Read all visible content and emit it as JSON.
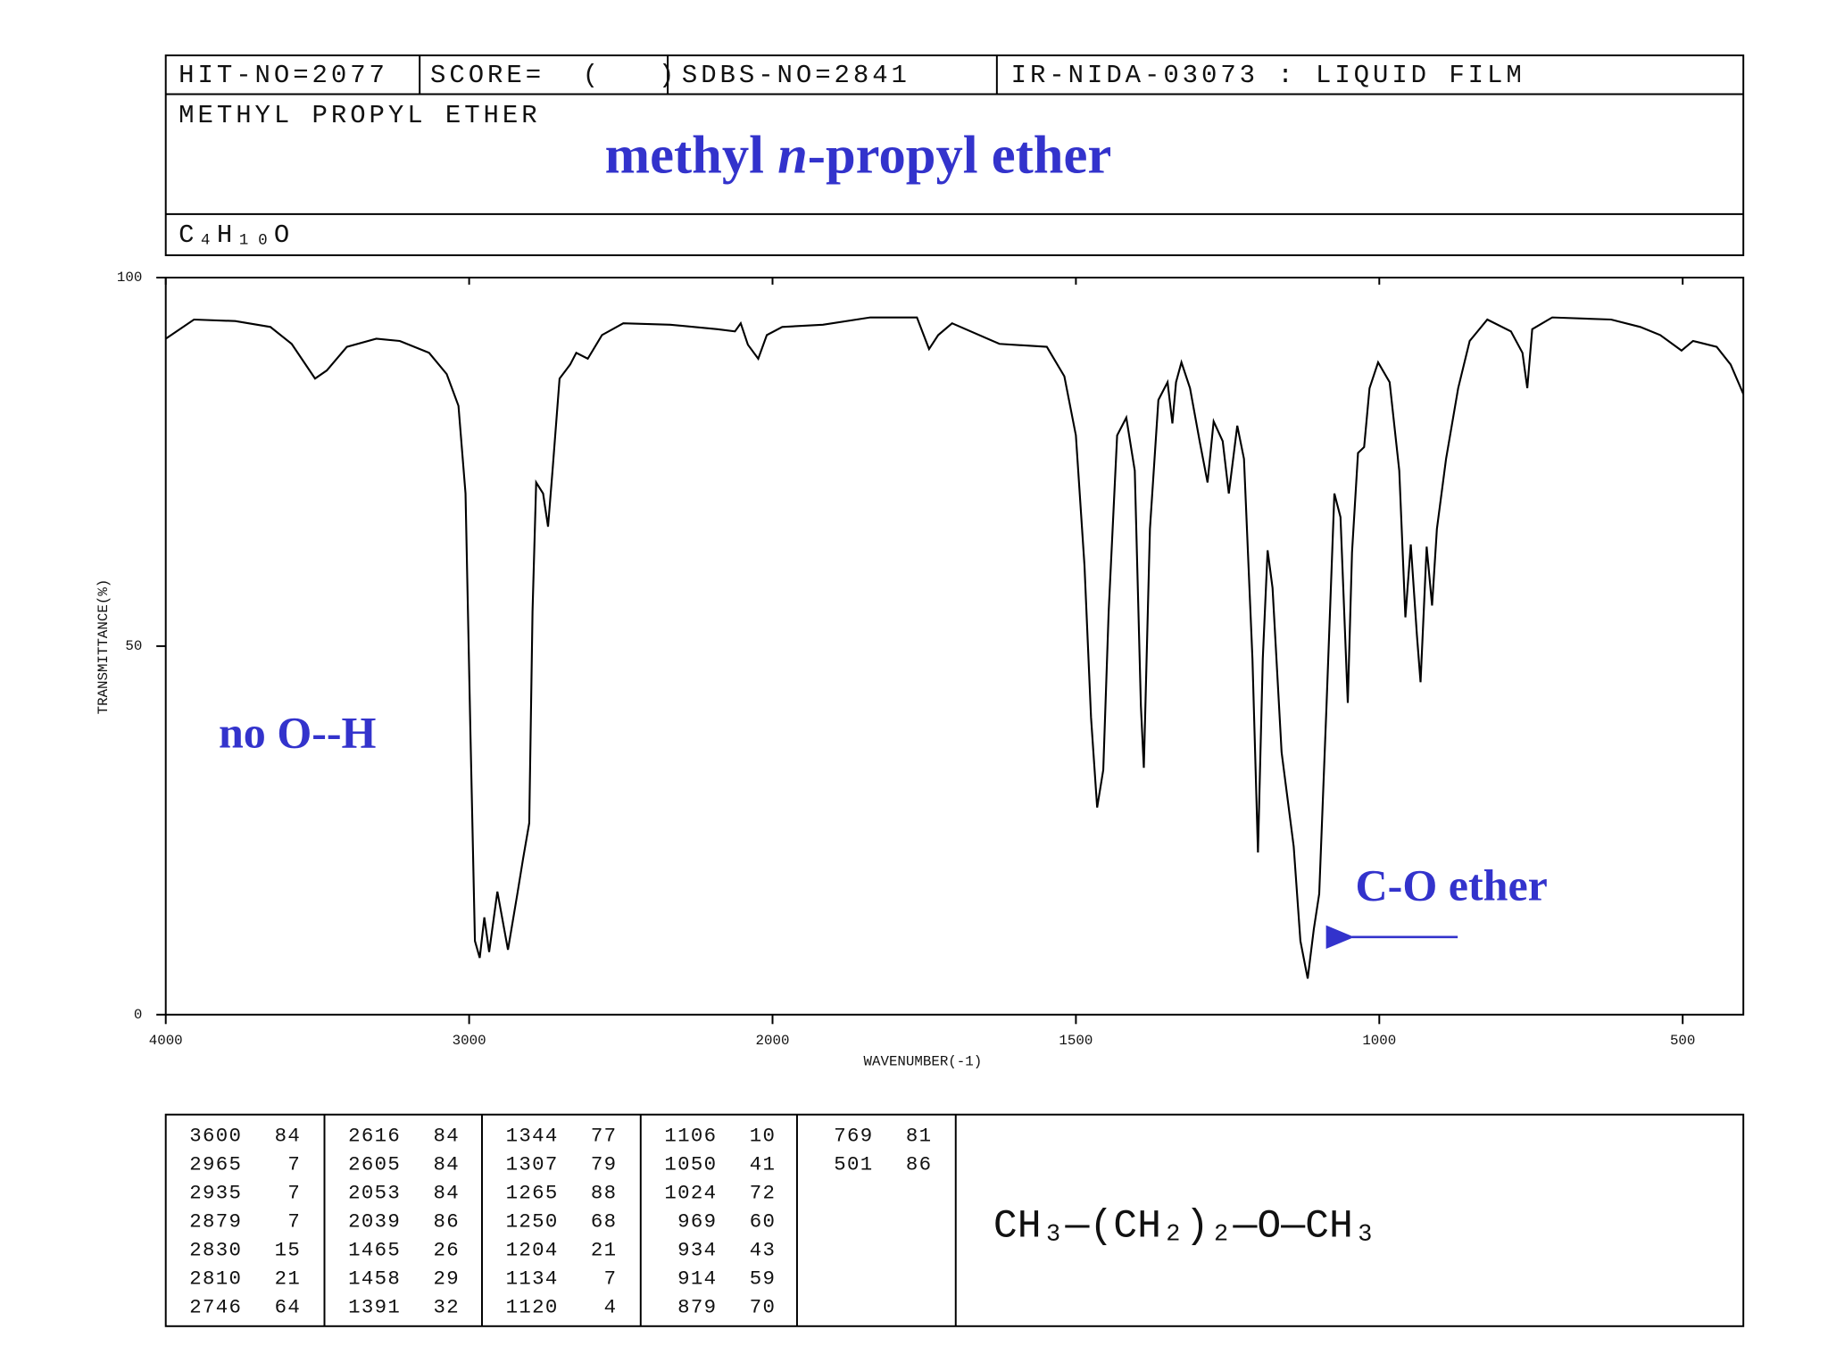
{
  "header": {
    "hit_no": "HIT-NO=2077",
    "score": "SCORE=  (   )",
    "sdbs_no": "SDBS-NO=2841",
    "method": "IR-NIDA-03073 : LIQUID FILM",
    "compound": "METHYL PROPYL ETHER",
    "formula": "C₄H₁₀O"
  },
  "title_parts": [
    "methyl ",
    "n",
    "-propyl ether"
  ],
  "chart_data": {
    "type": "line",
    "xlabel": "WAVENUMBER(-1)",
    "ylabel": "TRANSMITTANCE(%)",
    "x": [
      4000,
      3907,
      3771,
      3655,
      3585,
      3508,
      3469,
      3403,
      3306,
      3229,
      3132,
      3074,
      3035,
      3012,
      2996,
      2981,
      2965,
      2950,
      2934,
      2907,
      2872,
      2841,
      2822,
      2802,
      2791,
      2779,
      2756,
      2740,
      2725,
      2702,
      2667,
      2647,
      2609,
      2562,
      2492,
      2337,
      2182,
      2124,
      2105,
      2081,
      2047,
      2019,
      1984,
      1917,
      1839,
      1762,
      1742,
      1727,
      1704,
      1626,
      1548,
      1519,
      1500,
      1486,
      1475,
      1465,
      1455,
      1446,
      1432,
      1417,
      1403,
      1393,
      1388,
      1378,
      1364,
      1349,
      1341,
      1335,
      1326,
      1312,
      1296,
      1283,
      1273,
      1258,
      1248,
      1234,
      1223,
      1209,
      1200,
      1192,
      1184,
      1176,
      1161,
      1141,
      1130,
      1118,
      1108,
      1099,
      1087,
      1074,
      1064,
      1052,
      1045,
      1035,
      1025,
      1016,
      1002,
      983,
      967,
      957,
      948,
      938,
      932,
      922,
      913,
      905,
      890,
      870,
      851,
      822,
      783,
      764,
      756,
      748,
      715,
      618,
      570,
      537,
      502,
      483,
      444,
      421,
      400
    ],
    "series": [
      {
        "name": "transmittance",
        "color": "#000000",
        "values": [
          91.7,
          94.3,
          94.1,
          93.3,
          91,
          86.3,
          87.4,
          90.6,
          91.7,
          91.4,
          89.8,
          86.9,
          82.6,
          70.7,
          38.8,
          10,
          7.7,
          13.2,
          8.5,
          16.7,
          8.8,
          16.4,
          21.2,
          26,
          54.7,
          72.2,
          70.7,
          66.2,
          73.8,
          86.3,
          88.2,
          89.8,
          89,
          92.2,
          93.8,
          93.6,
          93,
          92.7,
          93.8,
          90.9,
          89,
          92.2,
          93.3,
          93.6,
          94.6,
          94.6,
          90.3,
          92.2,
          93.8,
          91,
          90.6,
          86.6,
          78.6,
          61,
          40.3,
          28.1,
          33.2,
          54.7,
          78.6,
          81,
          73.8,
          41.9,
          33.5,
          65.9,
          83.4,
          85.8,
          80.2,
          85.8,
          88.5,
          85,
          77.8,
          72.2,
          80.5,
          77.8,
          70.7,
          79.9,
          75.4,
          48.3,
          22,
          48.3,
          63,
          57.9,
          35.6,
          22.8,
          10,
          4.9,
          11.6,
          16.4,
          41.9,
          70.7,
          67.5,
          42.3,
          62.7,
          76.2,
          77,
          85,
          88.5,
          85.8,
          73.8,
          53.9,
          63.8,
          51.5,
          45.1,
          63.5,
          55.5,
          65.9,
          75.4,
          85,
          91.4,
          94.3,
          92.7,
          89.8,
          85,
          93,
          94.6,
          94.3,
          93.3,
          92.2,
          90.1,
          91.4,
          90.6,
          88.2,
          84.2
        ]
      }
    ],
    "xlim": [
      4000,
      400
    ],
    "xticks": [
      4000,
      3000,
      2000,
      1500,
      1000,
      500
    ],
    "ylim": [
      0,
      100
    ],
    "yticks": [
      0,
      50,
      100
    ],
    "annotations": [
      "no O--H",
      "C-O ether"
    ]
  },
  "peak_table": [
    [
      3600,
      84
    ],
    [
      2965,
      7
    ],
    [
      2935,
      7
    ],
    [
      2879,
      7
    ],
    [
      2830,
      15
    ],
    [
      2810,
      21
    ],
    [
      2746,
      64
    ],
    [
      2616,
      84
    ],
    [
      2605,
      84
    ],
    [
      2053,
      84
    ],
    [
      2039,
      86
    ],
    [
      1465,
      26
    ],
    [
      1458,
      29
    ],
    [
      1391,
      32
    ],
    [
      1344,
      77
    ],
    [
      1307,
      79
    ],
    [
      1265,
      88
    ],
    [
      1250,
      68
    ],
    [
      1204,
      21
    ],
    [
      1134,
      7
    ],
    [
      1120,
      4
    ],
    [
      1106,
      10
    ],
    [
      1050,
      41
    ],
    [
      1024,
      72
    ],
    [
      969,
      60
    ],
    [
      934,
      43
    ],
    [
      914,
      59
    ],
    [
      879,
      70
    ],
    [
      769,
      81
    ],
    [
      501,
      86
    ]
  ],
  "structure": "CH₃—(CH₂)₂—O—CH₃"
}
